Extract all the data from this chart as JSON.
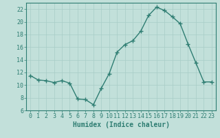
{
  "x": [
    0,
    1,
    2,
    3,
    4,
    5,
    6,
    7,
    8,
    9,
    10,
    11,
    12,
    13,
    14,
    15,
    16,
    17,
    18,
    19,
    20,
    21,
    22,
    23
  ],
  "y": [
    11.5,
    10.8,
    10.7,
    10.4,
    10.7,
    10.3,
    7.8,
    7.7,
    6.9,
    9.5,
    11.8,
    15.2,
    16.4,
    17.0,
    18.5,
    21.0,
    22.3,
    21.8,
    20.8,
    19.7,
    16.5,
    13.5,
    10.5,
    10.5
  ],
  "line_color": "#2e7d72",
  "bg_color": "#c2e0da",
  "grid_color": "#a8ccc6",
  "xlabel": "Humidex (Indice chaleur)",
  "ylim": [
    6,
    23
  ],
  "xlim": [
    -0.5,
    23.5
  ],
  "yticks": [
    6,
    8,
    10,
    12,
    14,
    16,
    18,
    20,
    22
  ],
  "xticks": [
    0,
    1,
    2,
    3,
    4,
    5,
    6,
    7,
    8,
    9,
    10,
    11,
    12,
    13,
    14,
    15,
    16,
    17,
    18,
    19,
    20,
    21,
    22,
    23
  ],
  "label_fontsize": 7,
  "tick_fontsize": 6,
  "marker": "+",
  "marker_size": 4,
  "line_width": 1.0
}
